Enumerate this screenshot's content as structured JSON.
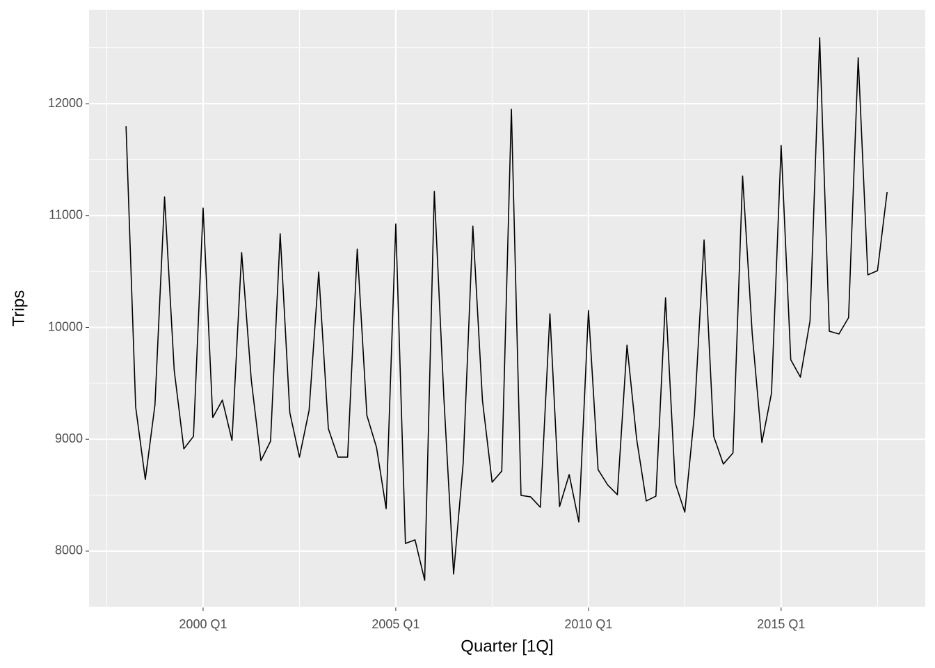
{
  "chart_data": {
    "type": "line",
    "x_label": "Quarter [1Q]",
    "y_label": "Trips",
    "x": [
      1998,
      1998.25,
      1998.5,
      1998.75,
      1999,
      1999.25,
      1999.5,
      1999.75,
      2000,
      2000.25,
      2000.5,
      2000.75,
      2001,
      2001.25,
      2001.5,
      2001.75,
      2002,
      2002.25,
      2002.5,
      2002.75,
      2003,
      2003.25,
      2003.5,
      2003.75,
      2004,
      2004.25,
      2004.5,
      2004.75,
      2005,
      2005.25,
      2005.5,
      2005.75,
      2006,
      2006.25,
      2006.5,
      2006.75,
      2007,
      2007.25,
      2007.5,
      2007.75,
      2008,
      2008.25,
      2008.5,
      2008.75,
      2009,
      2009.25,
      2009.5,
      2009.75,
      2010,
      2010.25,
      2010.5,
      2010.75,
      2011,
      2011.25,
      2011.5,
      2011.75,
      2012,
      2012.25,
      2012.5,
      2012.75,
      2013,
      2013.25,
      2013.5,
      2013.75,
      2014,
      2014.25,
      2014.5,
      2014.75,
      2015,
      2015.25,
      2015.5,
      2015.75,
      2016,
      2016.25,
      2016.5,
      2016.75,
      2017,
      2017.25,
      2017.5,
      2017.75
    ],
    "series": [
      {
        "color": "#000000",
        "values": [
          11800,
          9288,
          8640,
          9306,
          11166,
          9617,
          8914,
          9026,
          11067,
          9194,
          9350,
          8989,
          10669,
          9530,
          8809,
          8983,
          10837,
          9238,
          8840,
          9257,
          10495,
          9095,
          8840,
          8840,
          10700,
          9213,
          8927,
          8379,
          10924,
          8068,
          8100,
          7739,
          11216,
          9356,
          7795,
          8790,
          10905,
          9344,
          8616,
          8715,
          11950,
          8498,
          8485,
          8392,
          10121,
          8398,
          8684,
          8261,
          10152,
          8728,
          8591,
          8504,
          9841,
          9002,
          8448,
          8491,
          10264,
          8610,
          8348,
          9225,
          10781,
          9026,
          8778,
          8877,
          11353,
          9941,
          8970,
          9412,
          11627,
          9711,
          9555,
          10059,
          12591,
          9966,
          9941,
          10087,
          12411,
          10470,
          10507,
          11210
        ]
      }
    ],
    "xlim": [
      1997.04,
      2018.74
    ],
    "ylim": [
      7496,
      12840
    ],
    "xticks": [
      {
        "value": 2000,
        "label": "2000 Q1"
      },
      {
        "value": 2005,
        "label": "2005 Q1"
      },
      {
        "value": 2010,
        "label": "2010 Q1"
      },
      {
        "value": 2015,
        "label": "2015 Q1"
      }
    ],
    "yticks": [
      8000,
      9000,
      10000,
      11000,
      12000
    ],
    "grid": true
  }
}
